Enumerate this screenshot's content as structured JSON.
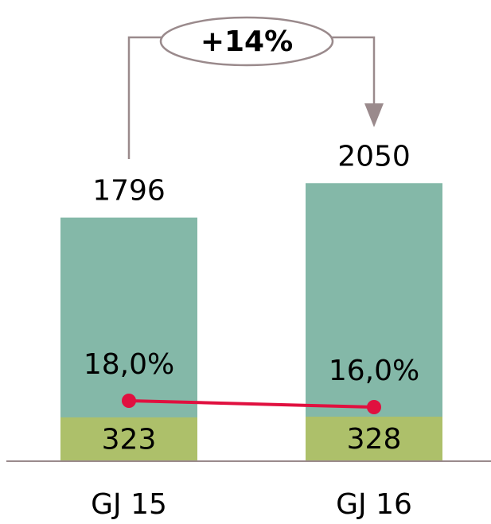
{
  "chart_data": {
    "type": "bar",
    "annotation": "+14%",
    "categories": [
      "GJ 15",
      "GJ 16"
    ],
    "series": [
      {
        "type": "bar",
        "color": "#84b8a8",
        "values": [
          1796,
          2050
        ]
      },
      {
        "type": "bar",
        "color": "#adc06a",
        "values": [
          323,
          328
        ]
      },
      {
        "type": "line",
        "axis": "y2",
        "color": "#e0103f",
        "values": [
          18.0,
          16.0
        ],
        "value_labels": [
          "18,0%",
          "16,0%"
        ]
      }
    ],
    "ylim": [
      0,
      3400
    ],
    "y2lim": [
      -1,
      144
    ]
  }
}
